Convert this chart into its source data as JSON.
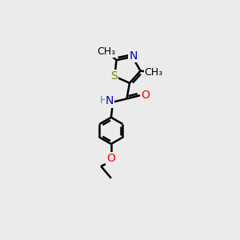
{
  "background_color": "#ebebeb",
  "bond_color": "#000000",
  "bond_width": 1.8,
  "atoms": {
    "S": {
      "color": "#808000",
      "fontsize": 10
    },
    "N": {
      "color": "#0000cc",
      "fontsize": 10
    },
    "O": {
      "color": "#ff0000",
      "fontsize": 10
    },
    "H": {
      "color": "#4a9090",
      "fontsize": 9
    }
  },
  "methyl_fontsize": 9,
  "methyl_color": "#000000"
}
